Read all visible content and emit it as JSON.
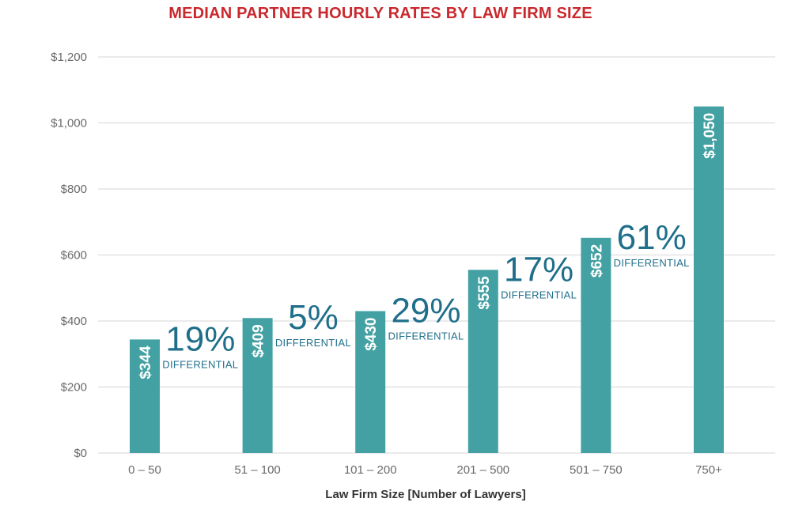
{
  "title": "MEDIAN PARTNER HOURLY RATES BY LAW FIRM SIZE",
  "colors": {
    "bar": "#44a1a3",
    "title": "#c9282d",
    "annotation": "#1f6f8b",
    "grid": "#d6d6d6"
  },
  "chart_data": {
    "type": "bar",
    "title": "MEDIAN PARTNER HOURLY RATES BY LAW FIRM SIZE",
    "xlabel": "Law Firm Size [Number of Lawyers]",
    "ylabel": "",
    "categories": [
      "0 – 50",
      "51 – 100",
      "101 – 200",
      "201 – 500",
      "501 – 750",
      "750+"
    ],
    "values": [
      344,
      409,
      430,
      555,
      652,
      1050
    ],
    "value_labels": [
      "$344",
      "$409",
      "$430",
      "$555",
      "$652",
      "$1,050"
    ],
    "ylim": [
      0,
      1200
    ],
    "yticks": [
      0,
      200,
      400,
      600,
      800,
      1000,
      1200
    ],
    "ytick_labels": [
      "$0",
      "$200",
      "$400",
      "$600",
      "$800",
      "$1,000",
      "$1,200"
    ],
    "grid": true,
    "annotations": [
      {
        "between": [
          0,
          1
        ],
        "percent": "19%",
        "text": "DIFFERENTIAL"
      },
      {
        "between": [
          1,
          2
        ],
        "percent": "5%",
        "text": "DIFFERENTIAL"
      },
      {
        "between": [
          2,
          3
        ],
        "percent": "29%",
        "text": "DIFFERENTIAL"
      },
      {
        "between": [
          3,
          4
        ],
        "percent": "17%",
        "text": "DIFFERENTIAL"
      },
      {
        "between": [
          4,
          5
        ],
        "percent": "61%",
        "text": "DIFFERENTIAL"
      }
    ]
  }
}
